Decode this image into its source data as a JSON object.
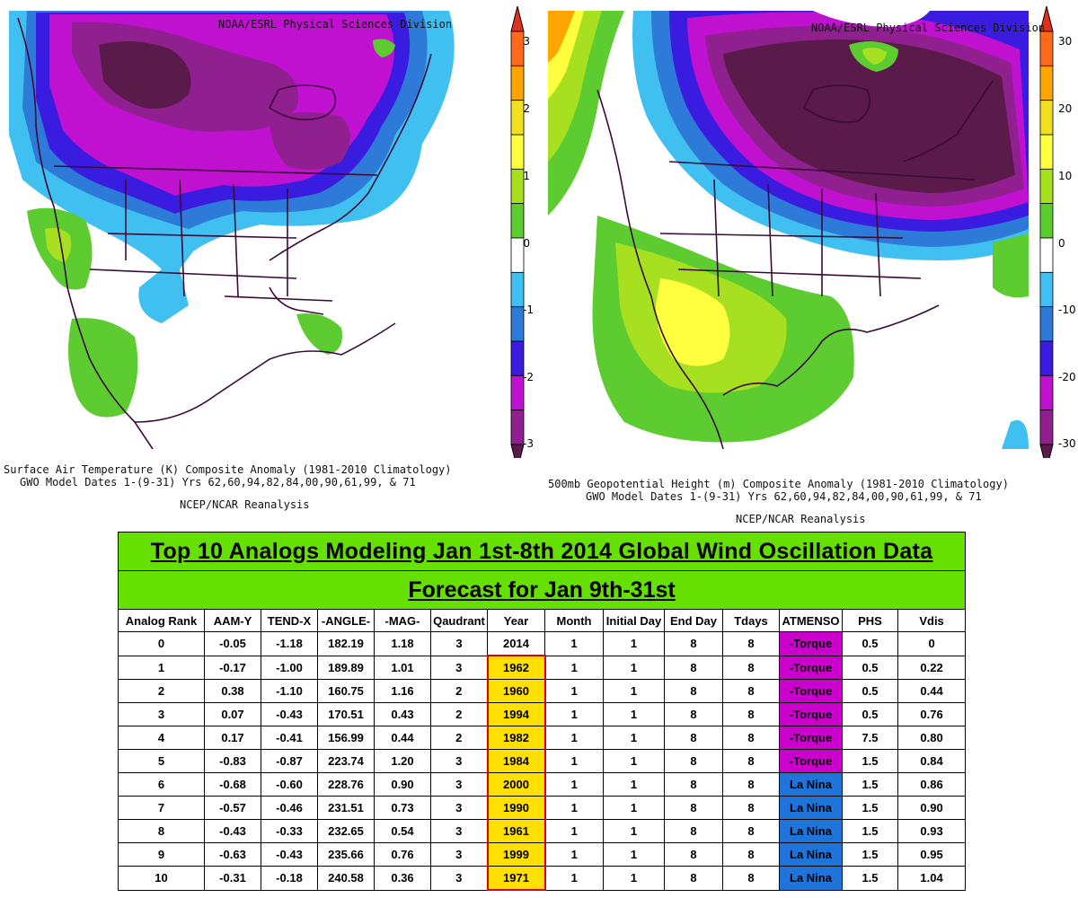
{
  "left_map": {
    "credit": "NOAA/ESRL Physical Sciences Division",
    "caption_line1": "Surface Air Temperature (K) Composite Anomaly (1981-2010 Climatology)",
    "caption_line2": "GWO Model Dates 1-(9-31) Yrs 62,60,94,82,84,00,90,61,99, & 71",
    "caption_line3": "NCEP/NCAR Reanalysis",
    "colorbar_labels": [
      "3",
      "2",
      "1",
      "0",
      "-1",
      "-2",
      "-3"
    ],
    "colorbar_colors": [
      "#e0301e",
      "#ff6a1a",
      "#ffa500",
      "#f0e020",
      "#ffff40",
      "#a6e020",
      "#5ccc30",
      "#ffffff",
      "#3fc0f0",
      "#2e7ad8",
      "#3a1ce0",
      "#c010d0",
      "#902090",
      "#5a1a4a"
    ]
  },
  "right_map": {
    "credit": "NOAA/ESRL Physical Sciences Division",
    "caption_line1": "500mb Geopotential Height (m) Composite Anomaly (1981-2010 Climatology)",
    "caption_line2": "GWO Model Dates 1-(9-31) Yrs 62,60,94,82,84,00,90,61,99, & 71",
    "caption_line3": "NCEP/NCAR Reanalysis",
    "colorbar_labels": [
      "30",
      "20",
      "10",
      "0",
      "-10",
      "-20",
      "-30"
    ],
    "colorbar_colors": [
      "#e0301e",
      "#ff6a1a",
      "#ffa500",
      "#f0e020",
      "#ffff40",
      "#a6e020",
      "#5ccc30",
      "#ffffff",
      "#3fc0f0",
      "#2e7ad8",
      "#3a1ce0",
      "#c010d0",
      "#902090",
      "#5a1a4a"
    ]
  },
  "table": {
    "title": "Top 10 Analogs Modeling Jan 1st-8th 2014 Global Wind Oscillation Data",
    "subtitle": "Forecast for Jan 9th-31st",
    "headers": [
      "Analog Rank",
      "AAM-Y",
      "TEND-X",
      "-ANGLE-",
      "-MAG-",
      "Qaudrant",
      "Year",
      "Month",
      "Initial Day",
      "End Day",
      "Tdays",
      "ATMENSO",
      "PHS",
      "Vdis"
    ],
    "rows": [
      [
        "0",
        "-0.05",
        "-1.18",
        "182.19",
        "1.18",
        "3",
        "2014",
        "1",
        "1",
        "8",
        "8",
        "-Torque",
        "0.5",
        "0"
      ],
      [
        "1",
        "-0.17",
        "-1.00",
        "189.89",
        "1.01",
        "3",
        "1962",
        "1",
        "1",
        "8",
        "8",
        "-Torque",
        "0.5",
        "0.22"
      ],
      [
        "2",
        "0.38",
        "-1.10",
        "160.75",
        "1.16",
        "2",
        "1960",
        "1",
        "1",
        "8",
        "8",
        "-Torque",
        "0.5",
        "0.44"
      ],
      [
        "3",
        "0.07",
        "-0.43",
        "170.51",
        "0.43",
        "2",
        "1994",
        "1",
        "1",
        "8",
        "8",
        "-Torque",
        "0.5",
        "0.76"
      ],
      [
        "4",
        "0.17",
        "-0.41",
        "156.99",
        "0.44",
        "2",
        "1982",
        "1",
        "1",
        "8",
        "8",
        "-Torque",
        "7.5",
        "0.80"
      ],
      [
        "5",
        "-0.83",
        "-0.87",
        "223.74",
        "1.20",
        "3",
        "1984",
        "1",
        "1",
        "8",
        "8",
        "-Torque",
        "1.5",
        "0.84"
      ],
      [
        "6",
        "-0.68",
        "-0.60",
        "228.76",
        "0.90",
        "3",
        "2000",
        "1",
        "1",
        "8",
        "8",
        "La Nina",
        "1.5",
        "0.86"
      ],
      [
        "7",
        "-0.57",
        "-0.46",
        "231.51",
        "0.73",
        "3",
        "1990",
        "1",
        "1",
        "8",
        "8",
        "La Nina",
        "1.5",
        "0.90"
      ],
      [
        "8",
        "-0.43",
        "-0.33",
        "232.65",
        "0.54",
        "3",
        "1961",
        "1",
        "1",
        "8",
        "8",
        "La Nina",
        "1.5",
        "0.93"
      ],
      [
        "9",
        "-0.63",
        "-0.43",
        "235.66",
        "0.76",
        "3",
        "1999",
        "1",
        "1",
        "8",
        "8",
        "La Nina",
        "1.5",
        "0.95"
      ],
      [
        "10",
        "-0.31",
        "-0.18",
        "240.58",
        "0.36",
        "3",
        "1971",
        "1",
        "1",
        "8",
        "8",
        "La Nina",
        "1.5",
        "1.04"
      ]
    ],
    "colors": {
      "title_bg": "#66e000",
      "year_bg": "#ffe000",
      "year_border": "#e00000",
      "torque_bg": "#cc00cc",
      "la_nina_bg": "#1e74d8"
    }
  }
}
